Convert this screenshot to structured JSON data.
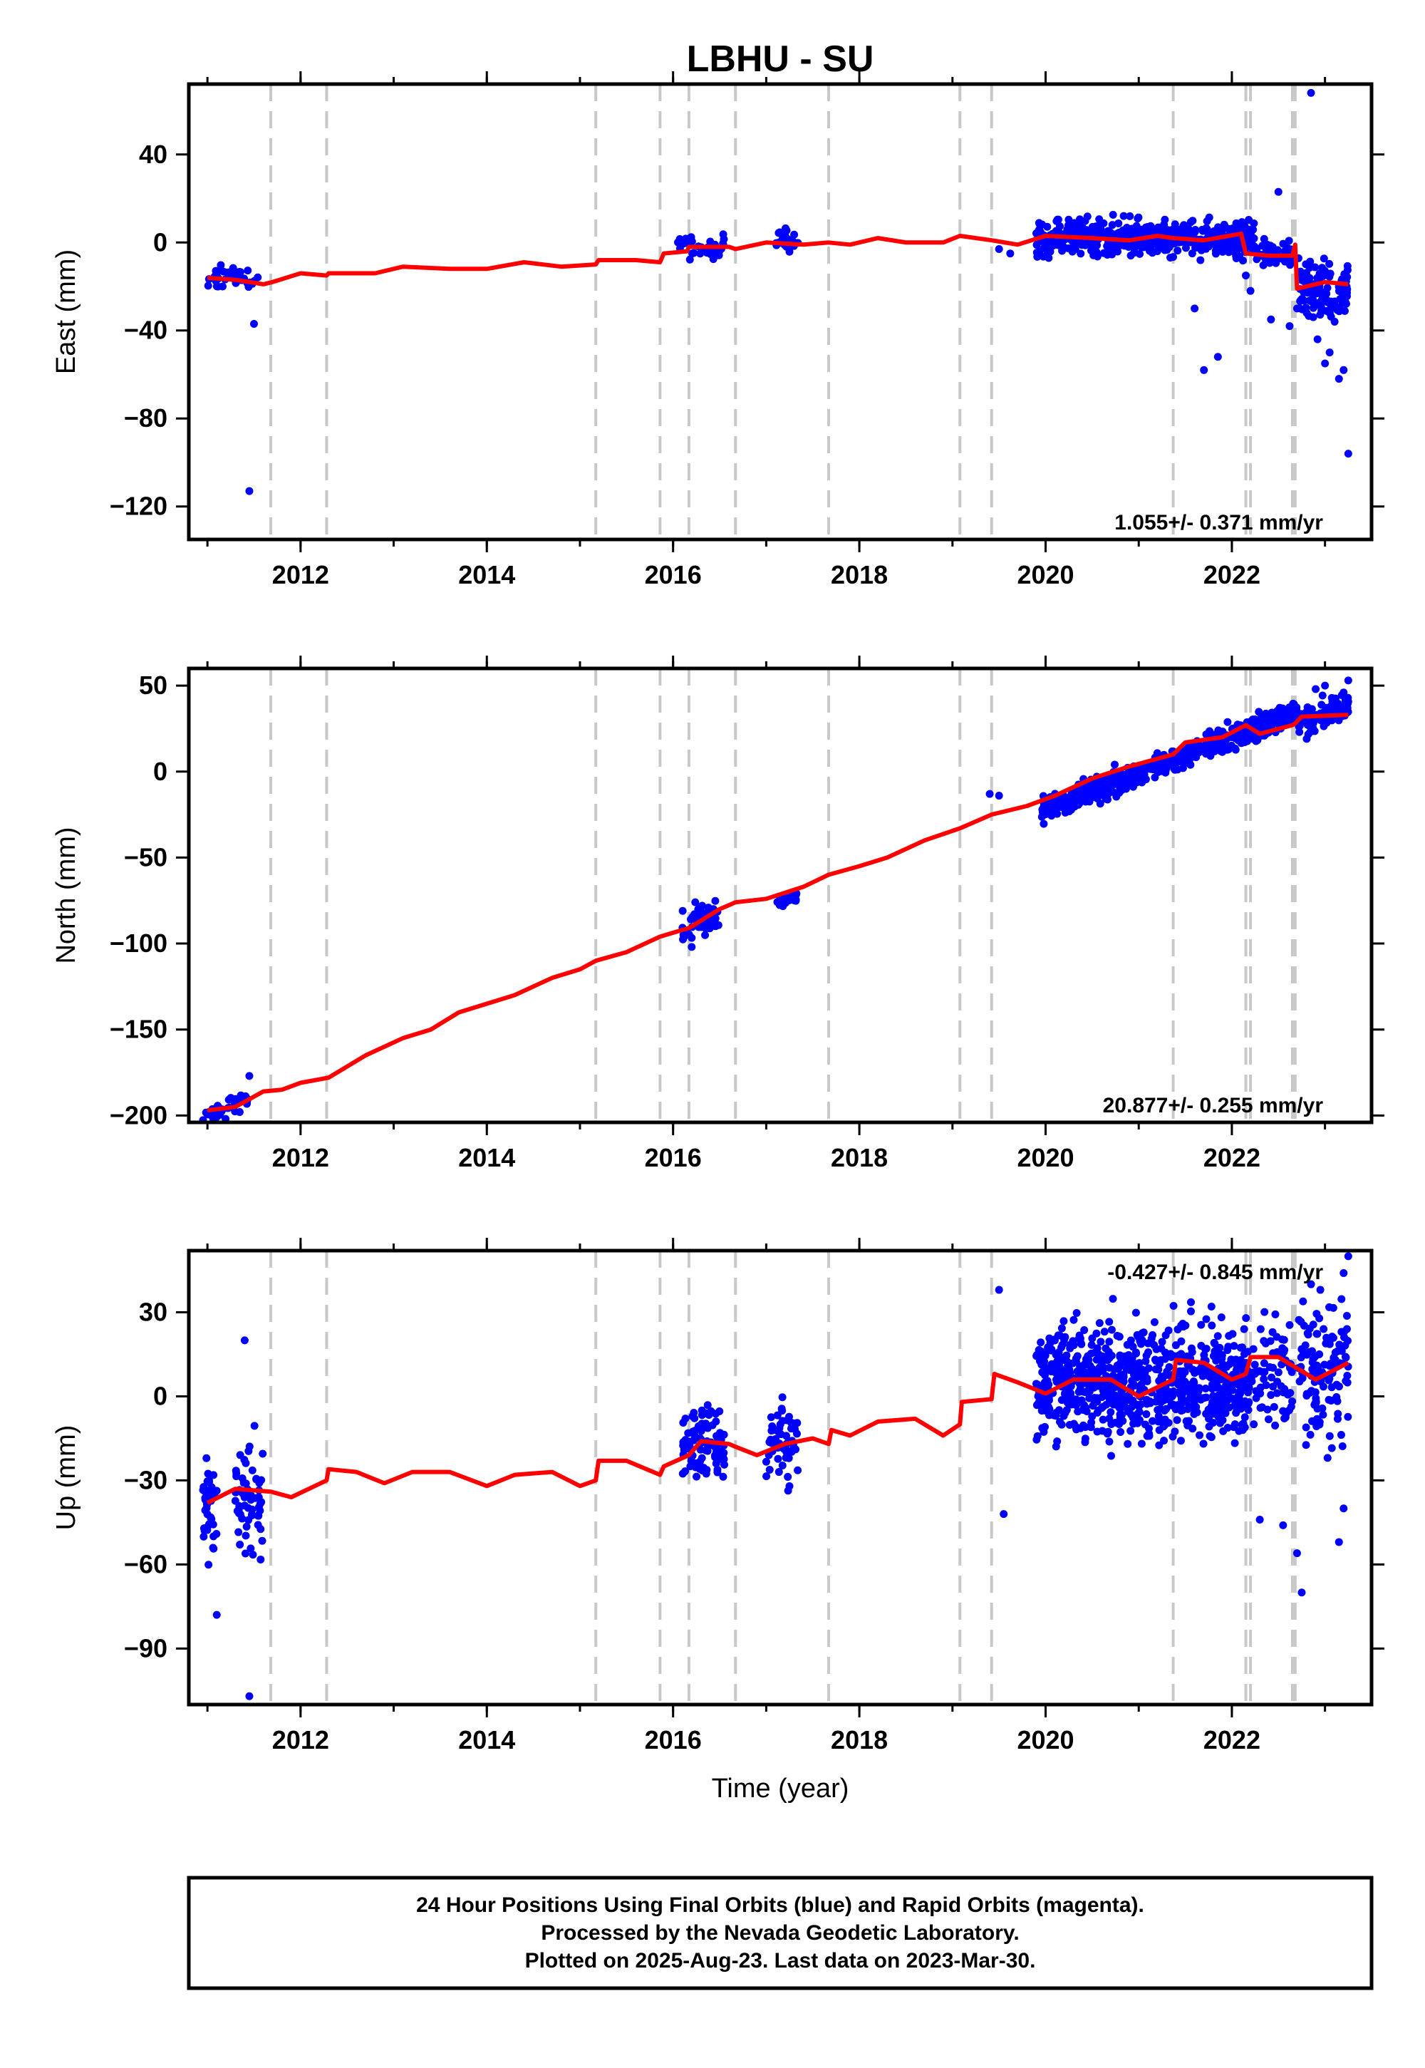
{
  "title": "LBHU - SU",
  "xlabel": "Time (year)",
  "footer": {
    "line1": "24 Hour Positions Using Final Orbits (blue) and Rapid Orbits (magenta).",
    "line2": "Processed by the Nevada Geodetic Laboratory.",
    "line3": "Plotted on 2025-Aug-23. Last data on 2023-Mar-30."
  },
  "colors": {
    "data": "#0000ff",
    "model": "#ff0000",
    "breaks": "#c8c8c8",
    "frame": "#000000"
  },
  "chart_data": [
    {
      "type": "scatter",
      "ylabel": "East (mm)",
      "xlim": [
        2010.8,
        2023.5
      ],
      "ylim": [
        -135,
        72
      ],
      "x_ticks": [
        2012,
        2014,
        2016,
        2018,
        2020,
        2022
      ],
      "y_ticks": [
        40,
        0,
        -40,
        -80,
        -120
      ],
      "rate": "1.055+/- 0.371 mm/yr",
      "breaks": [
        2011.68,
        2012.28,
        2015.17,
        2015.86,
        2016.17,
        2016.67,
        2017.67,
        2019.08,
        2019.42,
        2021.37,
        2022.15,
        2022.2,
        2022.65,
        2022.68
      ],
      "model": [
        [
          2011.0,
          -16
        ],
        [
          2011.3,
          -17
        ],
        [
          2011.6,
          -19
        ],
        [
          2011.7,
          -18
        ],
        [
          2012.0,
          -14
        ],
        [
          2012.28,
          -15
        ],
        [
          2012.3,
          -14
        ],
        [
          2012.8,
          -14
        ],
        [
          2013.1,
          -11
        ],
        [
          2013.6,
          -12
        ],
        [
          2014.0,
          -12
        ],
        [
          2014.4,
          -9
        ],
        [
          2014.8,
          -11
        ],
        [
          2015.17,
          -10
        ],
        [
          2015.2,
          -8
        ],
        [
          2015.6,
          -8
        ],
        [
          2015.86,
          -9
        ],
        [
          2015.9,
          -5
        ],
        [
          2016.15,
          -4
        ],
        [
          2016.17,
          -2
        ],
        [
          2016.6,
          -2
        ],
        [
          2016.67,
          -3
        ],
        [
          2017.0,
          0
        ],
        [
          2017.4,
          -1
        ],
        [
          2017.67,
          0
        ],
        [
          2017.9,
          -1
        ],
        [
          2018.2,
          2
        ],
        [
          2018.5,
          0
        ],
        [
          2018.9,
          0
        ],
        [
          2019.08,
          3
        ],
        [
          2019.42,
          1
        ],
        [
          2019.7,
          -1
        ],
        [
          2020.0,
          3
        ],
        [
          2020.5,
          2
        ],
        [
          2020.9,
          1
        ],
        [
          2021.2,
          3
        ],
        [
          2021.37,
          2
        ],
        [
          2021.7,
          1
        ],
        [
          2022.1,
          4
        ],
        [
          2022.15,
          -5
        ],
        [
          2022.4,
          -6
        ],
        [
          2022.65,
          -6
        ],
        [
          2022.68,
          -1
        ],
        [
          2022.7,
          -21
        ],
        [
          2023.0,
          -18
        ],
        [
          2023.25,
          -19
        ]
      ],
      "clusters": [
        [
          2010.95,
          2011.55,
          -16,
          2.5,
          42
        ],
        [
          2016.05,
          2016.55,
          -2,
          2.5,
          40
        ],
        [
          2017.1,
          2017.35,
          1,
          2.5,
          25
        ],
        [
          2019.9,
          2022.25,
          2,
          4,
          520
        ],
        [
          2022.25,
          2022.65,
          -5,
          3,
          50
        ],
        [
          2022.7,
          2023.25,
          -22,
          6,
          110
        ]
      ],
      "points": [
        [
          2011.5,
          -37
        ],
        [
          2011.45,
          -113
        ],
        [
          2019.5,
          -3
        ],
        [
          2019.62,
          -5
        ],
        [
          2021.6,
          -30
        ],
        [
          2021.7,
          -58
        ],
        [
          2021.85,
          -52
        ],
        [
          2022.15,
          -15
        ],
        [
          2022.2,
          -22
        ],
        [
          2022.42,
          -35
        ],
        [
          2022.5,
          23
        ],
        [
          2022.62,
          -38
        ],
        [
          2022.88,
          -20
        ],
        [
          2022.92,
          -44
        ],
        [
          2023.0,
          -55
        ],
        [
          2023.05,
          -50
        ],
        [
          2023.15,
          -62
        ],
        [
          2023.2,
          -58
        ],
        [
          2023.25,
          -96
        ],
        [
          2022.85,
          68
        ],
        [
          2022.7,
          -30
        ]
      ]
    },
    {
      "type": "scatter",
      "ylabel": "North (mm)",
      "xlim": [
        2010.8,
        2023.5
      ],
      "ylim": [
        -204,
        60
      ],
      "x_ticks": [
        2012,
        2014,
        2016,
        2018,
        2020,
        2022
      ],
      "y_ticks": [
        50,
        0,
        -50,
        -100,
        -150,
        -200
      ],
      "rate": "20.877+/- 0.255 mm/yr",
      "breaks": [
        2011.68,
        2012.28,
        2015.17,
        2015.86,
        2016.17,
        2016.67,
        2017.67,
        2019.08,
        2019.42,
        2021.37,
        2022.15,
        2022.2,
        2022.65,
        2022.68
      ],
      "model": [
        [
          2011.0,
          -197
        ],
        [
          2011.3,
          -195
        ],
        [
          2011.6,
          -186
        ],
        [
          2011.8,
          -185
        ],
        [
          2012.0,
          -181
        ],
        [
          2012.3,
          -178
        ],
        [
          2012.7,
          -165
        ],
        [
          2013.1,
          -155
        ],
        [
          2013.4,
          -150
        ],
        [
          2013.7,
          -140
        ],
        [
          2014.0,
          -135
        ],
        [
          2014.3,
          -130
        ],
        [
          2014.7,
          -120
        ],
        [
          2015.0,
          -115
        ],
        [
          2015.17,
          -110
        ],
        [
          2015.5,
          -105
        ],
        [
          2015.86,
          -96
        ],
        [
          2016.17,
          -91
        ],
        [
          2016.5,
          -80
        ],
        [
          2016.67,
          -76
        ],
        [
          2017.0,
          -74
        ],
        [
          2017.4,
          -67
        ],
        [
          2017.67,
          -60
        ],
        [
          2018.0,
          -55
        ],
        [
          2018.3,
          -50
        ],
        [
          2018.7,
          -40
        ],
        [
          2019.08,
          -33
        ],
        [
          2019.42,
          -25
        ],
        [
          2019.8,
          -20
        ],
        [
          2020.1,
          -14
        ],
        [
          2020.5,
          -4
        ],
        [
          2020.9,
          3
        ],
        [
          2021.37,
          10
        ],
        [
          2021.5,
          17
        ],
        [
          2021.9,
          20
        ],
        [
          2022.15,
          27
        ],
        [
          2022.3,
          22
        ],
        [
          2022.65,
          27
        ],
        [
          2022.68,
          28
        ],
        [
          2022.75,
          32
        ],
        [
          2023.25,
          33
        ]
      ],
      "clusters": [
        [
          2010.95,
          2011.45,
          -196,
          2.5,
          40
        ],
        [
          2016.1,
          2016.5,
          -86,
          5,
          50
        ],
        [
          2017.1,
          2017.35,
          -74,
          2,
          25
        ],
        [
          2019.95,
          2022.7,
          6,
          3.5,
          600
        ],
        [
          2022.7,
          2023.25,
          33,
          4,
          100
        ]
      ],
      "points": [
        [
          2011.45,
          -177
        ],
        [
          2016.2,
          -102
        ],
        [
          2019.4,
          -13
        ],
        [
          2019.5,
          -14
        ],
        [
          2023.0,
          50
        ],
        [
          2023.25,
          53
        ],
        [
          2023.2,
          46
        ],
        [
          2022.9,
          48
        ]
      ]
    },
    {
      "type": "scatter",
      "ylabel": "Up (mm)",
      "xlim": [
        2010.8,
        2023.5
      ],
      "ylim": [
        -110,
        52
      ],
      "x_ticks": [
        2012,
        2014,
        2016,
        2018,
        2020,
        2022
      ],
      "y_ticks": [
        30,
        0,
        -30,
        -60,
        -90
      ],
      "rate": "-0.427+/- 0.845 mm/yr",
      "breaks": [
        2011.68,
        2012.28,
        2015.17,
        2015.86,
        2016.17,
        2016.67,
        2017.67,
        2019.08,
        2019.42,
        2021.37,
        2022.15,
        2022.2,
        2022.65,
        2022.68
      ],
      "model": [
        [
          2011.0,
          -38
        ],
        [
          2011.3,
          -33
        ],
        [
          2011.68,
          -34
        ],
        [
          2011.9,
          -36
        ],
        [
          2012.28,
          -30
        ],
        [
          2012.3,
          -26
        ],
        [
          2012.6,
          -27
        ],
        [
          2012.9,
          -31
        ],
        [
          2013.2,
          -27
        ],
        [
          2013.6,
          -27
        ],
        [
          2014.0,
          -32
        ],
        [
          2014.3,
          -28
        ],
        [
          2014.7,
          -27
        ],
        [
          2015.0,
          -32
        ],
        [
          2015.17,
          -30
        ],
        [
          2015.2,
          -23
        ],
        [
          2015.5,
          -23
        ],
        [
          2015.86,
          -28
        ],
        [
          2015.9,
          -25
        ],
        [
          2016.17,
          -21
        ],
        [
          2016.3,
          -16
        ],
        [
          2016.6,
          -17
        ],
        [
          2016.67,
          -18
        ],
        [
          2016.9,
          -21
        ],
        [
          2017.2,
          -17
        ],
        [
          2017.5,
          -15
        ],
        [
          2017.67,
          -17
        ],
        [
          2017.7,
          -12
        ],
        [
          2017.9,
          -14
        ],
        [
          2018.2,
          -9
        ],
        [
          2018.6,
          -8
        ],
        [
          2018.9,
          -14
        ],
        [
          2019.08,
          -10
        ],
        [
          2019.1,
          -2
        ],
        [
          2019.42,
          -1
        ],
        [
          2019.45,
          8
        ],
        [
          2019.7,
          5
        ],
        [
          2020.0,
          1
        ],
        [
          2020.3,
          6
        ],
        [
          2020.7,
          6
        ],
        [
          2021.0,
          0
        ],
        [
          2021.37,
          6
        ],
        [
          2021.4,
          13
        ],
        [
          2021.7,
          12
        ],
        [
          2022.0,
          6
        ],
        [
          2022.15,
          8
        ],
        [
          2022.2,
          14
        ],
        [
          2022.5,
          14
        ],
        [
          2022.65,
          11
        ],
        [
          2022.9,
          6
        ],
        [
          2023.25,
          12
        ]
      ],
      "clusters": [
        [
          2010.95,
          2011.1,
          -42,
          9,
          40
        ],
        [
          2011.3,
          2011.6,
          -36,
          9,
          60
        ],
        [
          2016.1,
          2016.55,
          -17,
          7,
          100
        ],
        [
          2017.0,
          2017.35,
          -16,
          7,
          60
        ],
        [
          2019.9,
          2022.2,
          5,
          10,
          800
        ],
        [
          2022.2,
          2022.65,
          8,
          10,
          70
        ],
        [
          2022.7,
          2023.25,
          10,
          12,
          120
        ]
      ],
      "points": [
        [
          2011.4,
          20
        ],
        [
          2011.45,
          -107
        ],
        [
          2011.1,
          -78
        ],
        [
          2019.5,
          38
        ],
        [
          2019.55,
          -42
        ],
        [
          2022.3,
          -44
        ],
        [
          2022.55,
          -46
        ],
        [
          2022.7,
          -56
        ],
        [
          2022.75,
          -70
        ],
        [
          2023.15,
          -52
        ],
        [
          2023.2,
          -40
        ],
        [
          2022.85,
          40
        ],
        [
          2023.25,
          50
        ],
        [
          2023.2,
          44
        ],
        [
          2022.95,
          38
        ]
      ]
    }
  ]
}
